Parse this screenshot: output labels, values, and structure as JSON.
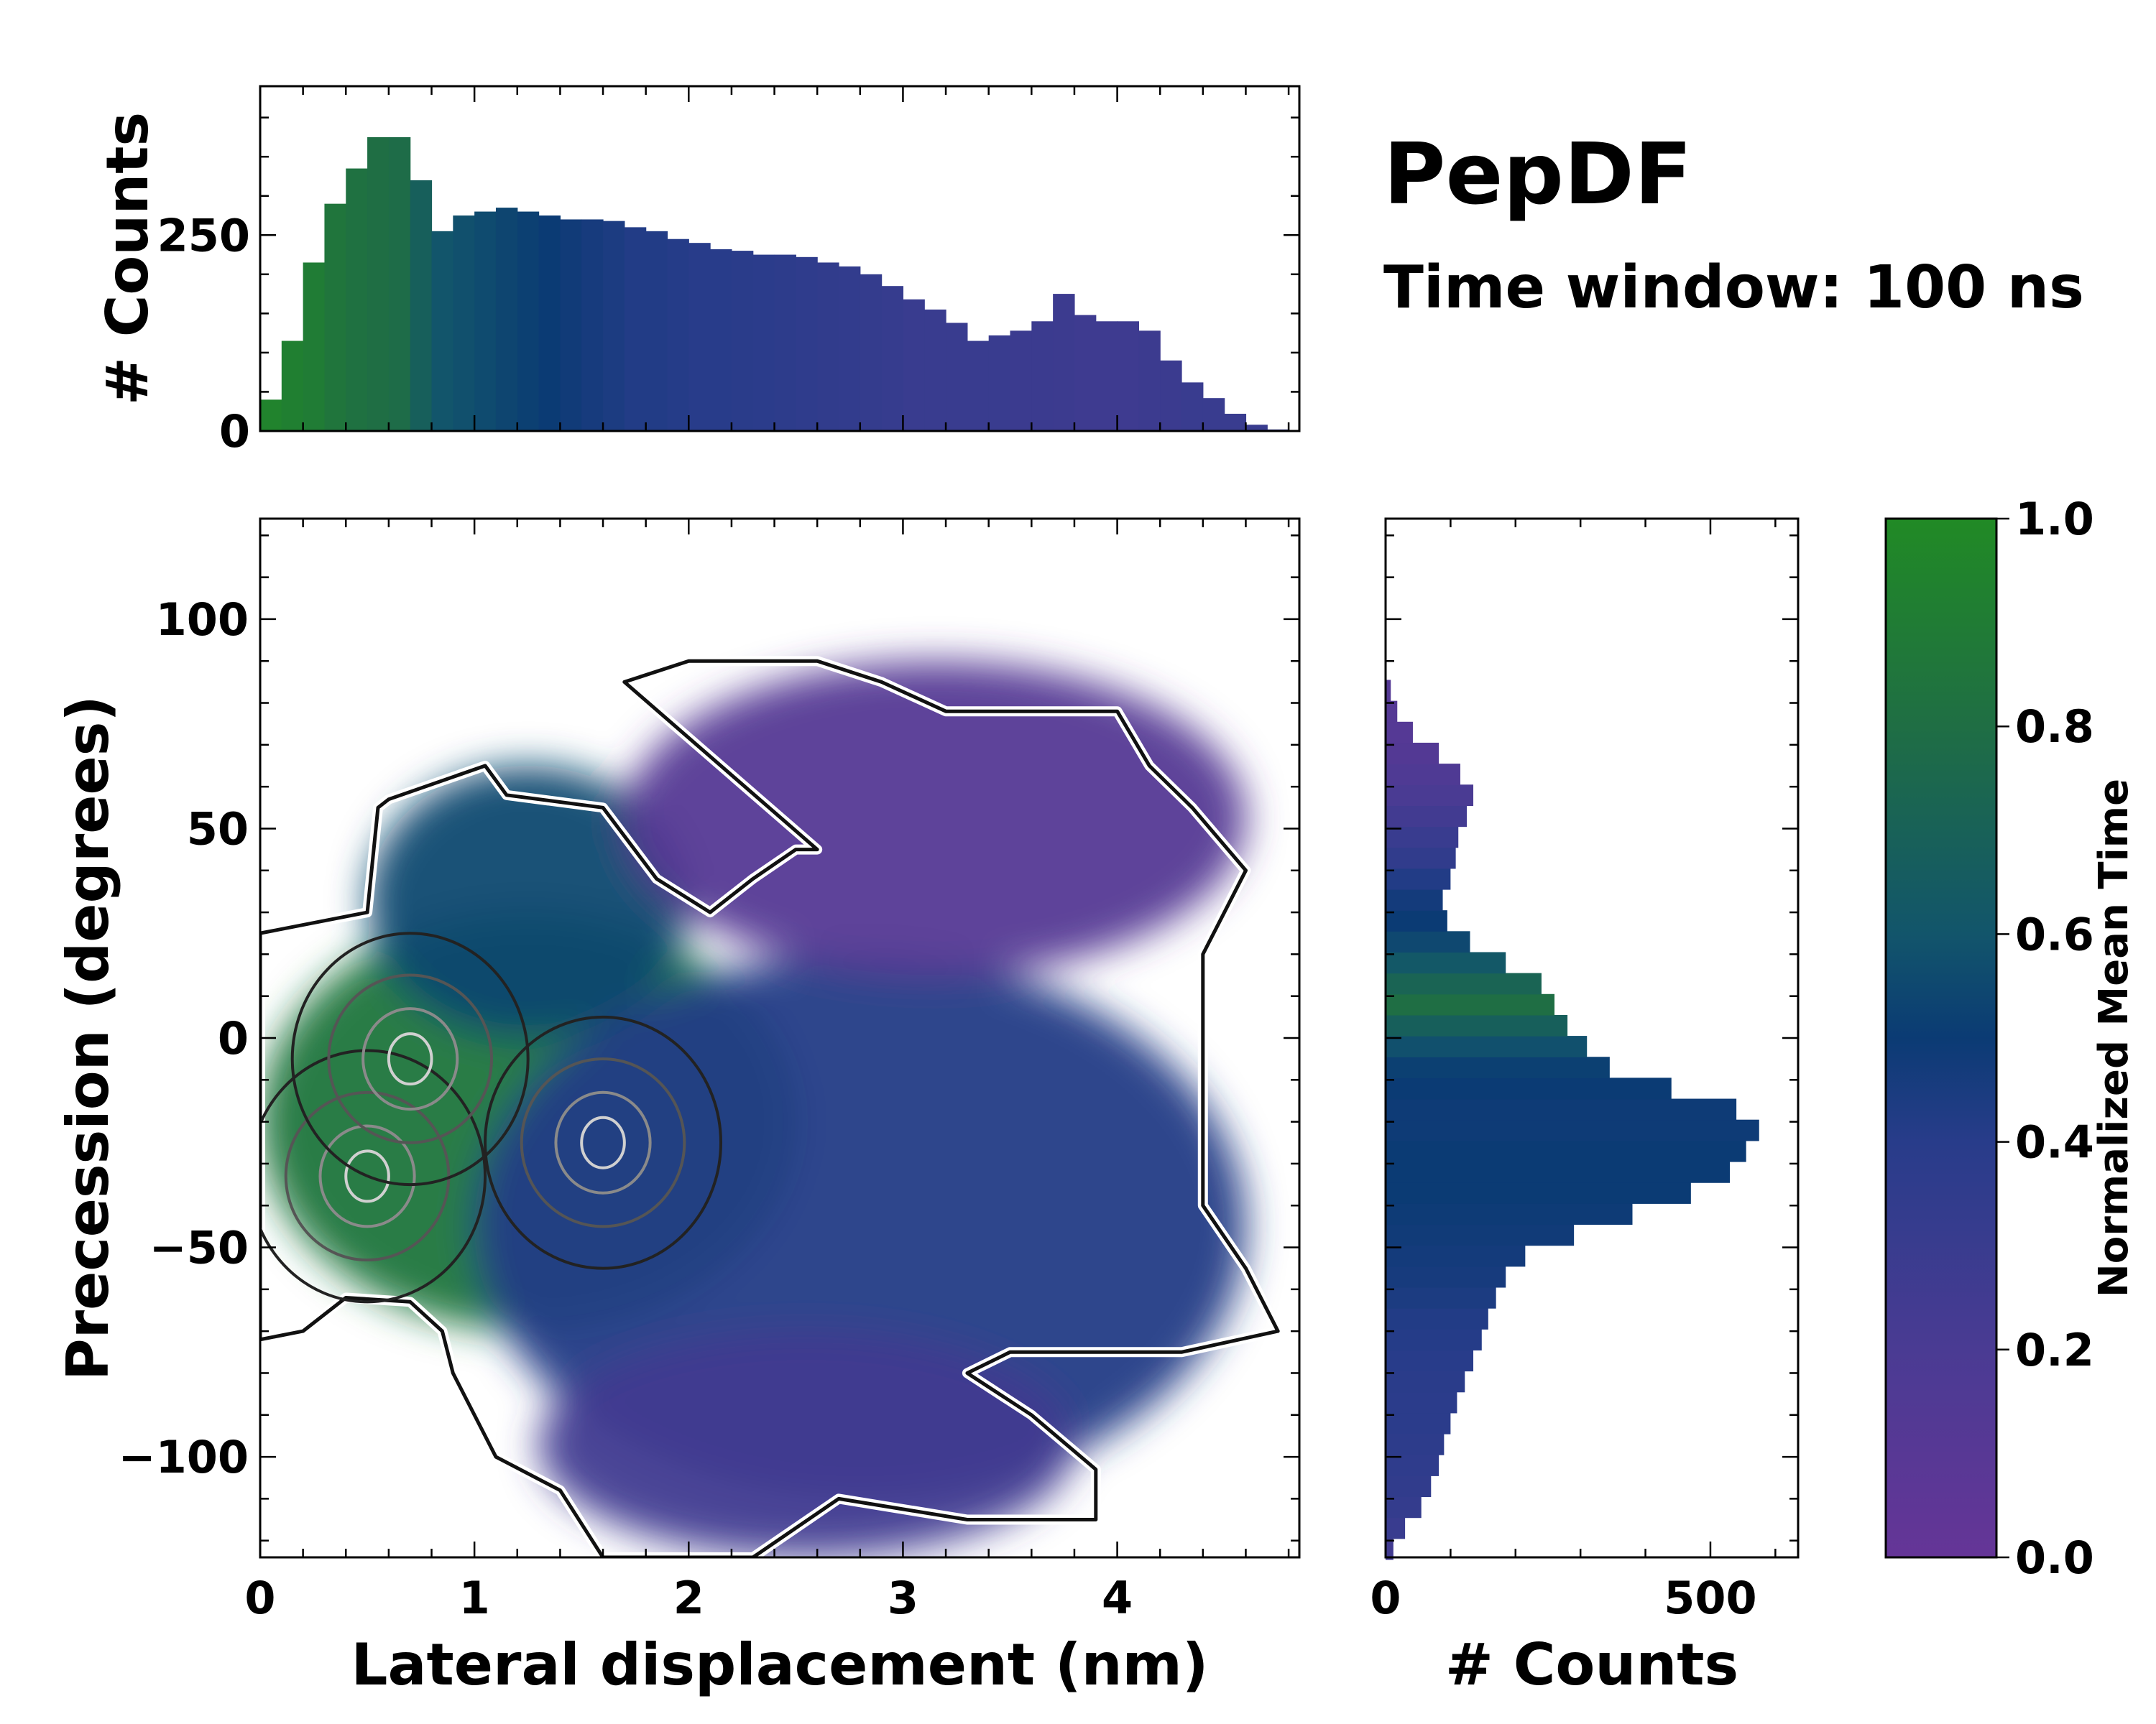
{
  "chart_data": [
    {
      "type": "heatmap",
      "panel": "joint",
      "xlabel": "Lateral displacement (nm)",
      "ylabel": "Precession (degrees)",
      "xlim": [
        0,
        4.85
      ],
      "ylim": [
        -124,
        124
      ],
      "x_ticks": [
        0,
        1,
        2,
        3,
        4
      ],
      "x_tick_labels": [
        "0",
        "1",
        "2",
        "3",
        "4"
      ],
      "y_ticks": [
        -100,
        -50,
        0,
        50,
        100
      ],
      "y_tick_labels": [
        "−100",
        "−50",
        "0",
        "50",
        "100"
      ],
      "regions": [
        {
          "name": "green-early-cluster",
          "x_range": [
            0,
            2.5
          ],
          "y_range": [
            -70,
            30
          ],
          "normalized_time": 0.85
        },
        {
          "name": "teal-upper-lobe",
          "x_range": [
            0.5,
            2.0
          ],
          "y_range": [
            0,
            65
          ],
          "normalized_time": 0.55
        },
        {
          "name": "blue-middle-band",
          "x_range": [
            1.0,
            4.6
          ],
          "y_range": [
            -110,
            20
          ],
          "normalized_time": 0.42
        },
        {
          "name": "purple-upper-lobe",
          "x_range": [
            1.7,
            4.6
          ],
          "y_range": [
            15,
            90
          ],
          "normalized_time": 0.12
        },
        {
          "name": "purple-lower-tail",
          "x_range": [
            1.3,
            3.8
          ],
          "y_range": [
            -124,
            -70
          ],
          "normalized_time": 0.25
        }
      ],
      "density_peaks": [
        {
          "x": 0.5,
          "y": -33
        },
        {
          "x": 0.7,
          "y": -5
        },
        {
          "x": 1.6,
          "y": -25
        }
      ]
    },
    {
      "type": "bar",
      "panel": "top-marginal",
      "ylabel": "# Counts",
      "xlim": [
        0,
        4.85
      ],
      "ylim": [
        0,
        440
      ],
      "y_ticks": [
        0,
        250
      ],
      "y_tick_labels": [
        "0",
        "250"
      ],
      "bin_centers_nm": [
        0.05,
        0.15,
        0.25,
        0.35,
        0.45,
        0.55,
        0.65,
        0.75,
        0.85,
        0.95,
        1.05,
        1.15,
        1.25,
        1.35,
        1.45,
        1.55,
        1.65,
        1.75,
        1.85,
        1.95,
        2.05,
        2.15,
        2.25,
        2.35,
        2.45,
        2.55,
        2.65,
        2.75,
        2.85,
        2.95,
        3.05,
        3.15,
        3.25,
        3.35,
        3.45,
        3.55,
        3.65,
        3.75,
        3.85,
        3.95,
        4.05,
        4.15,
        4.25,
        4.35,
        4.45,
        4.55,
        4.65,
        4.75
      ],
      "values": [
        40,
        115,
        215,
        290,
        335,
        375,
        375,
        320,
        255,
        275,
        280,
        285,
        280,
        275,
        270,
        270,
        268,
        260,
        255,
        245,
        240,
        232,
        230,
        225,
        225,
        222,
        215,
        210,
        200,
        185,
        168,
        155,
        138,
        115,
        122,
        128,
        140,
        175,
        148,
        140,
        140,
        128,
        90,
        62,
        42,
        22,
        8,
        2
      ],
      "normalized_time": [
        0.95,
        0.92,
        0.9,
        0.85,
        0.82,
        0.8,
        0.78,
        0.68,
        0.6,
        0.58,
        0.56,
        0.54,
        0.52,
        0.5,
        0.48,
        0.46,
        0.44,
        0.42,
        0.42,
        0.41,
        0.4,
        0.4,
        0.39,
        0.38,
        0.37,
        0.36,
        0.35,
        0.34,
        0.33,
        0.32,
        0.3,
        0.3,
        0.3,
        0.3,
        0.3,
        0.29,
        0.29,
        0.28,
        0.27,
        0.27,
        0.27,
        0.28,
        0.29,
        0.3,
        0.3,
        0.3,
        0.3,
        0.3
      ]
    },
    {
      "type": "bar",
      "panel": "right-marginal",
      "orientation": "horizontal",
      "xlabel": "# Counts",
      "xlim": [
        0,
        635
      ],
      "ylim": [
        -124,
        124
      ],
      "x_ticks": [
        0,
        500
      ],
      "x_tick_labels": [
        "0",
        "500"
      ],
      "bin_centers_deg": [
        -122,
        -117,
        -112,
        -107,
        -102,
        -97,
        -92,
        -87,
        -82,
        -77,
        -72,
        -67,
        -62,
        -57,
        -52,
        -47,
        -42,
        -37,
        -32,
        -27,
        -22,
        -17,
        -12,
        -7,
        -2,
        3,
        8,
        13,
        18,
        23,
        28,
        33,
        38,
        43,
        48,
        53,
        58,
        63,
        68,
        73,
        78,
        83
      ],
      "values": [
        12,
        30,
        55,
        70,
        82,
        90,
        100,
        110,
        122,
        135,
        148,
        158,
        170,
        185,
        215,
        290,
        380,
        470,
        530,
        555,
        575,
        540,
        440,
        345,
        310,
        280,
        260,
        240,
        185,
        130,
        95,
        88,
        100,
        108,
        112,
        125,
        135,
        115,
        82,
        42,
        18,
        8
      ],
      "normalized_time": [
        0.25,
        0.3,
        0.33,
        0.35,
        0.36,
        0.37,
        0.38,
        0.38,
        0.39,
        0.4,
        0.41,
        0.42,
        0.44,
        0.46,
        0.47,
        0.48,
        0.49,
        0.5,
        0.5,
        0.5,
        0.49,
        0.49,
        0.5,
        0.52,
        0.58,
        0.68,
        0.8,
        0.72,
        0.62,
        0.55,
        0.5,
        0.47,
        0.42,
        0.35,
        0.3,
        0.25,
        0.2,
        0.16,
        0.13,
        0.12,
        0.12,
        0.12
      ]
    },
    {
      "type": "colorbar",
      "label": "Normalized Mean Time",
      "range": [
        0.0,
        1.0
      ],
      "ticks": [
        0.0,
        0.2,
        0.4,
        0.6,
        0.8,
        1.0
      ],
      "tick_labels": [
        "0.0",
        "0.2",
        "0.4",
        "0.6",
        "0.8",
        "1.0"
      ],
      "colormap_stops": [
        {
          "v": 0.0,
          "color": "#653597"
        },
        {
          "v": 0.2,
          "color": "#4a3b93"
        },
        {
          "v": 0.4,
          "color": "#283c8a"
        },
        {
          "v": 0.5,
          "color": "#0b3b74"
        },
        {
          "v": 0.6,
          "color": "#12556b"
        },
        {
          "v": 0.8,
          "color": "#1f6e44"
        },
        {
          "v": 1.0,
          "color": "#218a25"
        }
      ]
    }
  ],
  "annotation": {
    "title": "PepDF",
    "subtitle": "Time window: 100 ns"
  }
}
